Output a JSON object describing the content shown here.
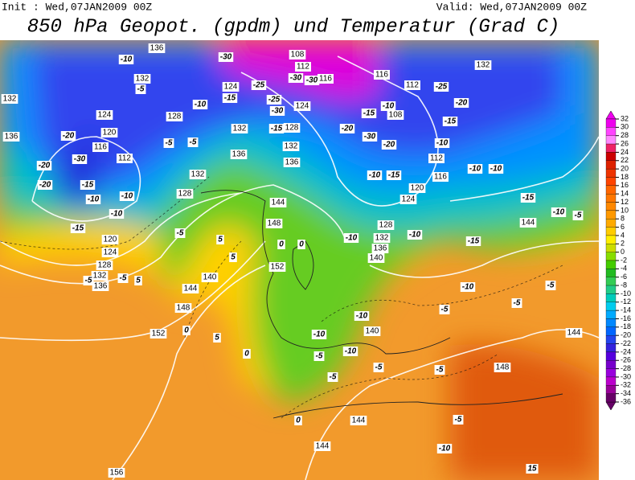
{
  "header": {
    "init": "Init : Wed,07JAN2009 00Z",
    "valid": "Valid: Wed,07JAN2009 00Z",
    "title": "850 hPa Geopot. (gpdm) und Temperatur (Grad C)"
  },
  "geopotential_labels": [
    136,
    132,
    132,
    136,
    124,
    120,
    116,
    112,
    120,
    124,
    128,
    132,
    136,
    144,
    148,
    152,
    140,
    148,
    144,
    152,
    128,
    124,
    132,
    136,
    132,
    128,
    132,
    136,
    128,
    124,
    112,
    108,
    116,
    116,
    112,
    108,
    112,
    116,
    120,
    124,
    128,
    132,
    136,
    140,
    132,
    144,
    140,
    148,
    144,
    144,
    144,
    156
  ],
  "temperature_labels": [
    -10,
    -5,
    -20,
    -30,
    -20,
    -20,
    -15,
    -10,
    -10,
    -10,
    -15,
    -5,
    -5,
    -5,
    -5,
    -5,
    -10,
    -15,
    -30,
    -25,
    -25,
    -30,
    -30,
    -30,
    -15,
    -20,
    -30,
    -20,
    -15,
    -10,
    -25,
    -20,
    -15,
    -10,
    -10,
    -10,
    -15,
    -10,
    -5,
    -10,
    -10,
    -15,
    -10,
    -5,
    -5,
    -10,
    -10,
    -10,
    -5,
    -5,
    -5,
    0,
    0,
    0,
    0,
    0,
    5,
    5,
    5,
    5,
    -5,
    -10,
    15,
    -5,
    -5,
    -10,
    -15
  ],
  "colorbar": {
    "ticks": [
      32,
      30,
      28,
      26,
      24,
      22,
      20,
      18,
      16,
      14,
      12,
      10,
      8,
      6,
      4,
      2,
      0,
      -2,
      -4,
      -6,
      -8,
      -10,
      -12,
      -14,
      -16,
      -18,
      -20,
      -22,
      -24,
      -26,
      -28,
      -30,
      -32,
      -34,
      -36
    ],
    "colors": [
      "#ee00ee",
      "#ff44ff",
      "#ff88ff",
      "#ee2266",
      "#cc0000",
      "#dd2200",
      "#ee3300",
      "#ff4400",
      "#ff6600",
      "#ff7700",
      "#ff8800",
      "#ff9900",
      "#ffaa00",
      "#ffcc00",
      "#ffee00",
      "#ccdd00",
      "#88dd00",
      "#44cc00",
      "#22bb22",
      "#33cc55",
      "#22cc88",
      "#00ccbb",
      "#00ccee",
      "#00aaff",
      "#0088ff",
      "#0066ff",
      "#2244ee",
      "#3322dd",
      "#5500dd",
      "#7700cc",
      "#9900dd",
      "#bb00cc",
      "#990099",
      "#660066"
    ]
  }
}
